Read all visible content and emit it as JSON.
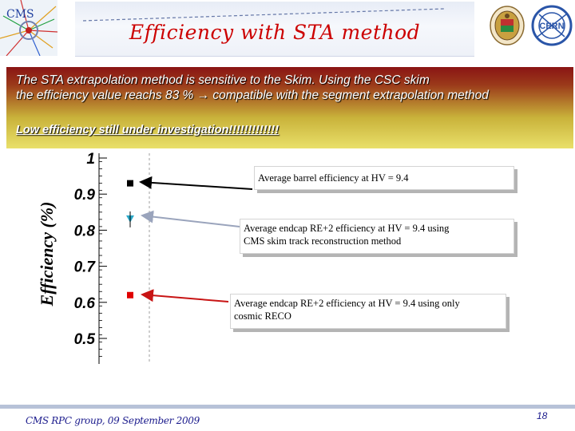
{
  "header": {
    "title": "Efficiency with STA method",
    "logo_left": "CMS"
  },
  "text_panel": {
    "line1": "The STA extrapolation method is sensitive to the Skim. Using the CSC skim",
    "line2": "the efficiency value reachs 83 % → compatible with the segment extrapolation method",
    "line3": "Low efficiency still under investigation!!!!!!!!!!!!!"
  },
  "chart_data": {
    "type": "scatter",
    "ylabel": "Efficiency (%)",
    "ylim": [
      0.45,
      1.02
    ],
    "yticks": [
      "1",
      "0.9",
      "0.8",
      "0.7",
      "0.6",
      "0.5"
    ],
    "points": [
      {
        "value": 0.93,
        "color": "#000000",
        "marker": "square"
      },
      {
        "value": 0.83,
        "color": "#2aa8c8",
        "marker": "triangle"
      },
      {
        "value": 0.62,
        "color": "#e00000",
        "marker": "square"
      }
    ]
  },
  "callouts": {
    "barrel": "Average barrel efficiency at HV = 9.4",
    "cms_skim_1": "Average endcap RE+2  efficiency at HV = 9.4 using",
    "cms_skim_2": "CMS skim track reconstruction  method",
    "cosmic_1": "Average endcap RE+2 efficiency at HV = 9.4 using only",
    "cosmic_2": "cosmic RECO"
  },
  "footer": {
    "text": "CMS RPC  group, 09 September 2009",
    "page": "18"
  }
}
